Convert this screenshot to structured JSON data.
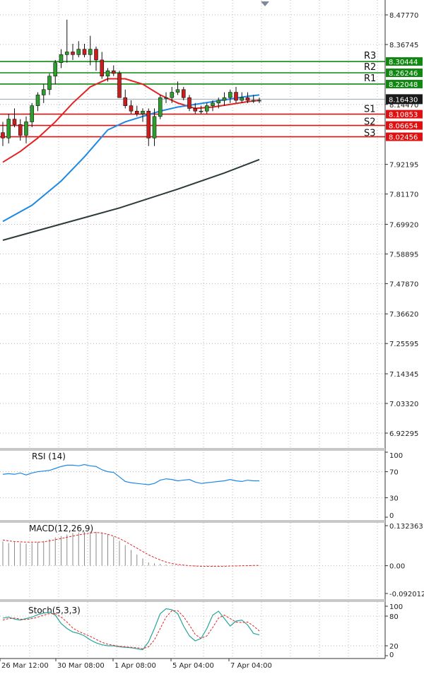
{
  "chart_data": {
    "type": "candlestick",
    "x_labels": [
      "26 Mar 12:00",
      "30 Mar 08:00",
      "1 Apr 08:00",
      "5 Apr 04:00",
      "7 Apr 04:00"
    ],
    "price_axis": {
      "ticks": [
        "8.47770",
        "8.36745",
        "8.14470",
        "7.92195",
        "7.81170",
        "7.69920",
        "7.58895",
        "7.47870",
        "7.36620",
        "7.25595",
        "7.14345",
        "7.03320",
        "6.92295"
      ],
      "range": [
        6.873,
        8.533
      ]
    },
    "current_price": {
      "label": "8.16430",
      "value": 8.1643
    },
    "levels": [
      {
        "name": "R3",
        "label": "8.30444",
        "value": 8.30444,
        "color": "#118811"
      },
      {
        "name": "R2",
        "label": "8.26246",
        "value": 8.26246,
        "color": "#118811"
      },
      {
        "name": "R1",
        "label": "8.22048",
        "value": 8.22048,
        "color": "#118811"
      },
      {
        "name": "S1",
        "label": "8.10853",
        "value": 8.10853,
        "color": "#dd1111"
      },
      {
        "name": "S2",
        "label": "8.06654",
        "value": 8.06654,
        "color": "#dd1111"
      },
      {
        "name": "S3",
        "label": "8.02456",
        "value": 8.02456,
        "color": "#dd1111"
      }
    ],
    "candles": [
      [
        8.04,
        8.08,
        7.99,
        8.02
      ],
      [
        8.02,
        8.11,
        8.0,
        8.09
      ],
      [
        8.09,
        8.13,
        8.06,
        8.07
      ],
      [
        8.07,
        8.09,
        8.01,
        8.03
      ],
      [
        8.03,
        8.1,
        8.0,
        8.08
      ],
      [
        8.08,
        8.15,
        8.06,
        8.14
      ],
      [
        8.14,
        8.19,
        8.12,
        8.18
      ],
      [
        8.18,
        8.22,
        8.15,
        8.2
      ],
      [
        8.2,
        8.26,
        8.18,
        8.25
      ],
      [
        8.25,
        8.31,
        8.22,
        8.3
      ],
      [
        8.3,
        8.35,
        8.28,
        8.33
      ],
      [
        8.33,
        8.46,
        8.3,
        8.34
      ],
      [
        8.34,
        8.37,
        8.31,
        8.33
      ],
      [
        8.33,
        8.38,
        8.32,
        8.35
      ],
      [
        8.35,
        8.37,
        8.32,
        8.33
      ],
      [
        8.33,
        8.4,
        8.29,
        8.35
      ],
      [
        8.35,
        8.36,
        8.27,
        8.31
      ],
      [
        8.31,
        8.34,
        8.24,
        8.25
      ],
      [
        8.25,
        8.28,
        8.23,
        8.27
      ],
      [
        8.27,
        8.29,
        8.25,
        8.26
      ],
      [
        8.26,
        8.27,
        8.17,
        8.17
      ],
      [
        8.17,
        8.2,
        8.13,
        8.14
      ],
      [
        8.14,
        8.16,
        8.11,
        8.12
      ],
      [
        8.12,
        8.14,
        8.1,
        8.11
      ],
      [
        8.11,
        8.13,
        8.08,
        8.12
      ],
      [
        8.12,
        8.13,
        7.99,
        8.02
      ],
      [
        8.02,
        8.13,
        7.99,
        8.1
      ],
      [
        8.1,
        8.18,
        8.09,
        8.17
      ],
      [
        8.17,
        8.19,
        8.15,
        8.17
      ],
      [
        8.17,
        8.21,
        8.15,
        8.19
      ],
      [
        8.19,
        8.23,
        8.18,
        8.2
      ],
      [
        8.2,
        8.21,
        8.16,
        8.17
      ],
      [
        8.17,
        8.18,
        8.12,
        8.13
      ],
      [
        8.13,
        8.15,
        8.11,
        8.12
      ],
      [
        8.12,
        8.14,
        8.11,
        8.12
      ],
      [
        8.12,
        8.15,
        8.11,
        8.14
      ],
      [
        8.14,
        8.16,
        8.12,
        8.15
      ],
      [
        8.15,
        8.17,
        8.13,
        8.16
      ],
      [
        8.16,
        8.19,
        8.14,
        8.17
      ],
      [
        8.17,
        8.2,
        8.15,
        8.19
      ],
      [
        8.19,
        8.21,
        8.15,
        8.16
      ],
      [
        8.16,
        8.19,
        8.15,
        8.17
      ],
      [
        8.17,
        8.19,
        8.15,
        8.16
      ],
      [
        8.16,
        8.18,
        8.15,
        8.16
      ],
      [
        8.16,
        8.17,
        8.15,
        8.16
      ]
    ],
    "moving_averages": [
      {
        "color": "#e52222",
        "points": [
          [
            0,
            7.93
          ],
          [
            3,
            7.97
          ],
          [
            6,
            8.02
          ],
          [
            9,
            8.08
          ],
          [
            12,
            8.15
          ],
          [
            15,
            8.21
          ],
          [
            18,
            8.24
          ],
          [
            21,
            8.24
          ],
          [
            24,
            8.22
          ],
          [
            27,
            8.18
          ],
          [
            30,
            8.15
          ],
          [
            33,
            8.13
          ],
          [
            36,
            8.135
          ],
          [
            39,
            8.145
          ],
          [
            42,
            8.155
          ],
          [
            44,
            8.16
          ]
        ]
      },
      {
        "color": "#1e88e5",
        "points": [
          [
            0,
            7.71
          ],
          [
            5,
            7.77
          ],
          [
            10,
            7.86
          ],
          [
            14,
            7.95
          ],
          [
            18,
            8.05
          ],
          [
            21,
            8.08
          ],
          [
            24,
            8.1
          ],
          [
            27,
            8.12
          ],
          [
            30,
            8.135
          ],
          [
            33,
            8.145
          ],
          [
            36,
            8.155
          ],
          [
            39,
            8.165
          ],
          [
            42,
            8.175
          ],
          [
            44,
            8.18
          ]
        ]
      },
      {
        "color": "#2b3b3b",
        "points": [
          [
            0,
            7.64
          ],
          [
            10,
            7.7
          ],
          [
            20,
            7.76
          ],
          [
            30,
            7.83
          ],
          [
            38,
            7.89
          ],
          [
            44,
            7.94
          ]
        ]
      }
    ],
    "rsi": {
      "label": "RSI (14)",
      "ticks": [
        "100",
        "70",
        "30",
        "0"
      ],
      "values": [
        66,
        67,
        66,
        68,
        65,
        68,
        70,
        71,
        72,
        75,
        78,
        80,
        80,
        79,
        81,
        79,
        78,
        73,
        70,
        69,
        62,
        55,
        53,
        52,
        51,
        50,
        52,
        57,
        59,
        58,
        56,
        57,
        58,
        54,
        52,
        53,
        54,
        55,
        56,
        58,
        56,
        55,
        57,
        56,
        56
      ]
    },
    "macd": {
      "label": "MACD(12,26,9)",
      "ticks": [
        "0.132363",
        "0.00",
        "-0.092012"
      ],
      "range": [
        -0.092012,
        0.132363
      ],
      "histogram": [
        0.08,
        0.075,
        0.078,
        0.075,
        0.073,
        0.075,
        0.078,
        0.082,
        0.088,
        0.094,
        0.098,
        0.103,
        0.108,
        0.11,
        0.112,
        0.113,
        0.112,
        0.11,
        0.104,
        0.096,
        0.082,
        0.068,
        0.052,
        0.037,
        0.024,
        0.011,
        0.008,
        0.006,
        0.004,
        0.002,
        0.002,
        0.001,
        -0.001,
        -0.002,
        -0.003,
        -0.002,
        -0.002,
        -0.001,
        -0.001,
        0,
        0,
        0,
        0.001,
        0.001,
        0.001
      ],
      "signal": [
        0.085,
        0.082,
        0.08,
        0.079,
        0.078,
        0.078,
        0.078,
        0.079,
        0.082,
        0.086,
        0.09,
        0.094,
        0.098,
        0.102,
        0.105,
        0.108,
        0.11,
        0.108,
        0.104,
        0.098,
        0.09,
        0.08,
        0.069,
        0.058,
        0.047,
        0.036,
        0.027,
        0.019,
        0.012,
        0.007,
        0.004,
        0.002,
        0.0,
        -0.001,
        -0.002,
        -0.002,
        -0.002,
        -0.002,
        -0.002,
        -0.001,
        -0.001,
        0,
        0,
        0.001,
        0.001
      ]
    },
    "stoch": {
      "label": "Stoch(5,3,3)",
      "ticks": [
        "100",
        "80",
        "20",
        "0"
      ],
      "k": [
        76,
        78,
        74,
        72,
        75,
        78,
        83,
        86,
        88,
        82,
        65,
        55,
        48,
        45,
        40,
        32,
        26,
        22,
        20,
        20,
        18,
        17,
        16,
        14,
        12,
        28,
        55,
        85,
        95,
        93,
        85,
        60,
        40,
        30,
        35,
        55,
        82,
        90,
        75,
        60,
        70,
        72,
        62,
        45,
        42
      ],
      "d": [
        72,
        75,
        76,
        74,
        73,
        75,
        78,
        82,
        85,
        85,
        78,
        68,
        56,
        49,
        44,
        39,
        33,
        27,
        23,
        21,
        19,
        18,
        17,
        16,
        14,
        18,
        32,
        55,
        78,
        91,
        91,
        79,
        62,
        43,
        35,
        40,
        57,
        76,
        82,
        75,
        68,
        67,
        68,
        60,
        50
      ]
    }
  }
}
